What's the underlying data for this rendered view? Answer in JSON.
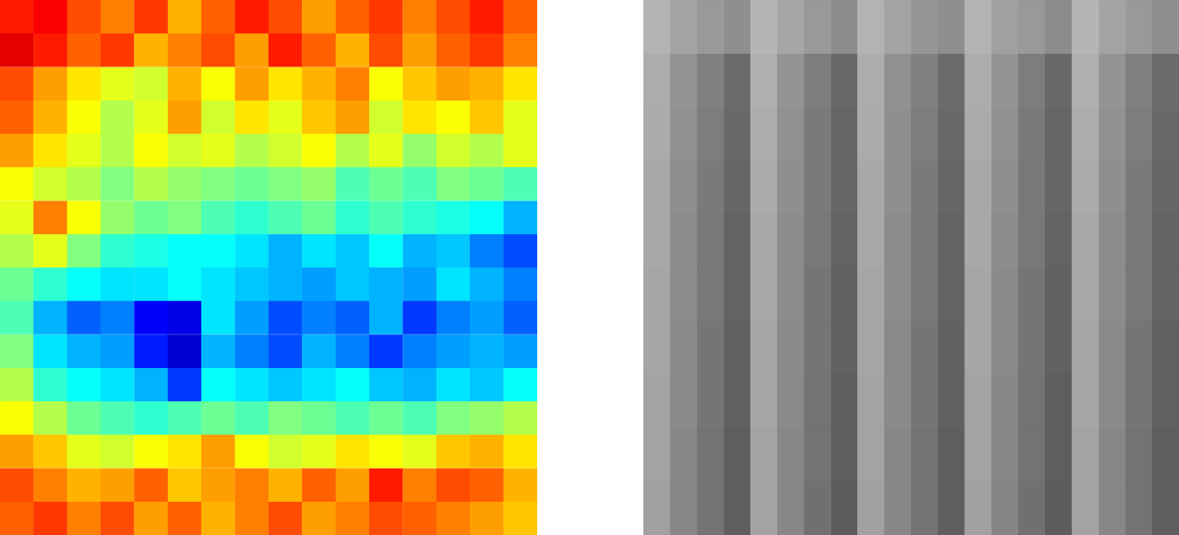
{
  "chart_data": [
    {
      "type": "heatmap",
      "color": "jet",
      "cell_range": [
        0,
        100
      ],
      "tick_labels": false,
      "cells": [
        [
          85,
          88,
          80,
          75,
          82,
          70,
          78,
          85,
          80,
          72,
          78,
          82,
          75,
          80,
          85,
          78
        ],
        [
          90,
          85,
          78,
          82,
          70,
          75,
          80,
          72,
          85,
          78,
          70,
          80,
          72,
          78,
          82,
          75
        ],
        [
          80,
          72,
          65,
          60,
          58,
          70,
          62,
          72,
          65,
          70,
          75,
          62,
          68,
          72,
          70,
          65
        ],
        [
          78,
          70,
          62,
          55,
          60,
          72,
          58,
          65,
          60,
          68,
          72,
          58,
          65,
          62,
          68,
          60
        ],
        [
          72,
          65,
          60,
          55,
          62,
          58,
          60,
          55,
          58,
          62,
          55,
          60,
          52,
          58,
          55,
          60
        ],
        [
          62,
          58,
          55,
          50,
          55,
          52,
          50,
          48,
          50,
          52,
          45,
          48,
          45,
          50,
          48,
          45
        ],
        [
          60,
          75,
          62,
          52,
          48,
          50,
          45,
          42,
          45,
          48,
          42,
          45,
          42,
          40,
          38,
          30
        ],
        [
          55,
          60,
          50,
          42,
          40,
          38,
          38,
          35,
          30,
          35,
          32,
          38,
          30,
          32,
          25,
          20
        ],
        [
          48,
          42,
          38,
          35,
          35,
          38,
          35,
          32,
          30,
          28,
          32,
          30,
          28,
          35,
          30,
          25
        ],
        [
          45,
          30,
          22,
          25,
          12,
          10,
          35,
          28,
          20,
          25,
          22,
          30,
          18,
          25,
          28,
          22
        ],
        [
          50,
          35,
          30,
          28,
          15,
          8,
          30,
          25,
          20,
          30,
          25,
          18,
          25,
          28,
          30,
          28
        ],
        [
          55,
          42,
          38,
          35,
          30,
          18,
          38,
          35,
          32,
          35,
          38,
          32,
          30,
          35,
          32,
          38
        ],
        [
          62,
          55,
          48,
          45,
          42,
          45,
          48,
          45,
          50,
          48,
          45,
          48,
          45,
          50,
          52,
          55
        ],
        [
          72,
          68,
          60,
          58,
          62,
          65,
          72,
          62,
          58,
          60,
          65,
          62,
          60,
          68,
          70,
          65
        ],
        [
          80,
          75,
          70,
          72,
          78,
          68,
          72,
          75,
          70,
          78,
          72,
          85,
          75,
          80,
          78,
          70
        ],
        [
          78,
          82,
          75,
          80,
          72,
          78,
          70,
          75,
          80,
          72,
          75,
          80,
          78,
          75,
          72,
          68
        ]
      ]
    },
    {
      "type": "heatmap",
      "color": "gray",
      "cell_range": [
        0,
        100
      ],
      "tick_labels": false,
      "cells": [
        [
          70,
          64,
          60,
          56,
          71,
          65,
          60,
          55,
          70,
          64,
          59,
          56,
          70,
          63,
          60,
          55,
          71,
          64,
          60,
          56
        ],
        [
          68,
          58,
          50,
          42,
          69,
          58,
          49,
          41,
          68,
          57,
          50,
          42,
          68,
          58,
          49,
          41,
          69,
          58,
          50,
          42
        ],
        [
          67,
          57,
          49,
          41,
          68,
          57,
          48,
          40,
          67,
          56,
          49,
          41,
          67,
          57,
          48,
          40,
          68,
          57,
          49,
          41
        ],
        [
          66,
          56,
          48,
          40,
          67,
          56,
          48,
          40,
          66,
          56,
          48,
          40,
          66,
          56,
          47,
          40,
          67,
          56,
          48,
          40
        ],
        [
          66,
          55,
          47,
          39,
          66,
          55,
          47,
          39,
          66,
          55,
          47,
          39,
          66,
          55,
          47,
          39,
          66,
          55,
          47,
          39
        ],
        [
          65,
          55,
          47,
          39,
          66,
          55,
          46,
          38,
          65,
          55,
          47,
          39,
          65,
          54,
          46,
          38,
          66,
          55,
          47,
          39
        ],
        [
          65,
          54,
          46,
          38,
          65,
          54,
          46,
          38,
          65,
          54,
          46,
          38,
          65,
          54,
          46,
          38,
          65,
          54,
          46,
          38
        ],
        [
          64,
          54,
          46,
          38,
          65,
          54,
          45,
          37,
          64,
          54,
          46,
          38,
          64,
          53,
          45,
          37,
          65,
          54,
          46,
          38
        ],
        [
          64,
          53,
          45,
          37,
          64,
          53,
          45,
          37,
          64,
          53,
          45,
          37,
          64,
          53,
          45,
          37,
          64,
          53,
          45,
          37
        ],
        [
          63,
          53,
          45,
          37,
          64,
          53,
          44,
          36,
          63,
          53,
          45,
          37,
          63,
          52,
          44,
          36,
          64,
          53,
          45,
          37
        ]
      ]
    }
  ]
}
